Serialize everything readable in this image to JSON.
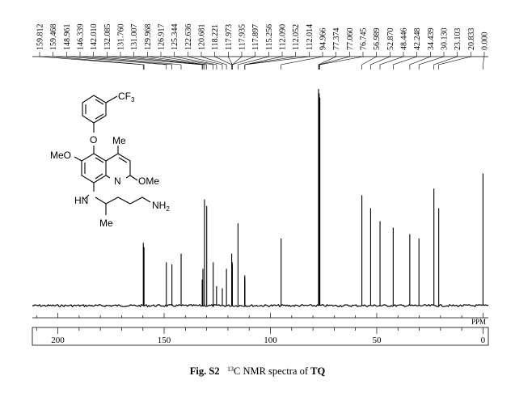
{
  "chart_data": {
    "type": "nmr-spectrum",
    "nucleus": "13C",
    "x_unit_label": "PPM",
    "x_range": [
      212,
      -2.5
    ],
    "x_ticks": [
      200,
      150,
      100,
      50,
      0
    ],
    "peak_labels": [
      "159.812",
      "159.468",
      "148.961",
      "146.339",
      "142.010",
      "132.085",
      "131.760",
      "131.007",
      "129.968",
      "126.917",
      "125.344",
      "122.636",
      "120.681",
      "118.221",
      "117.973",
      "117.935",
      "117.897",
      "115.256",
      "112.090",
      "112.052",
      "112.014",
      "94.966",
      "77.374",
      "77.060",
      "76.745",
      "56.989",
      "52.870",
      "48.446",
      "42.248",
      "34.439",
      "30.130",
      "23.103",
      "20.833",
      "0.000"
    ],
    "peaks": [
      {
        "ppm": 159.812,
        "height": 0.29
      },
      {
        "ppm": 159.468,
        "height": 0.27
      },
      {
        "ppm": 148.961,
        "height": 0.2
      },
      {
        "ppm": 146.339,
        "height": 0.19
      },
      {
        "ppm": 142.01,
        "height": 0.24
      },
      {
        "ppm": 132.085,
        "height": 0.12
      },
      {
        "ppm": 131.76,
        "height": 0.17
      },
      {
        "ppm": 131.007,
        "height": 0.49
      },
      {
        "ppm": 129.968,
        "height": 0.46
      },
      {
        "ppm": 126.917,
        "height": 0.2
      },
      {
        "ppm": 125.344,
        "height": 0.09
      },
      {
        "ppm": 122.636,
        "height": 0.08
      },
      {
        "ppm": 120.681,
        "height": 0.17
      },
      {
        "ppm": 118.221,
        "height": 0.24
      },
      {
        "ppm": 117.973,
        "height": 0.2
      },
      {
        "ppm": 117.935,
        "height": 0.19
      },
      {
        "ppm": 117.897,
        "height": 0.18
      },
      {
        "ppm": 115.256,
        "height": 0.38
      },
      {
        "ppm": 112.09,
        "height": 0.14
      },
      {
        "ppm": 112.052,
        "height": 0.13
      },
      {
        "ppm": 112.014,
        "height": 0.12
      },
      {
        "ppm": 94.966,
        "height": 0.31
      },
      {
        "ppm": 77.374,
        "height": 1.0
      },
      {
        "ppm": 77.06,
        "height": 0.98
      },
      {
        "ppm": 76.745,
        "height": 0.96
      },
      {
        "ppm": 56.989,
        "height": 0.51
      },
      {
        "ppm": 52.87,
        "height": 0.45
      },
      {
        "ppm": 48.446,
        "height": 0.39
      },
      {
        "ppm": 42.248,
        "height": 0.36
      },
      {
        "ppm": 34.439,
        "height": 0.33
      },
      {
        "ppm": 30.13,
        "height": 0.31
      },
      {
        "ppm": 23.103,
        "height": 0.54
      },
      {
        "ppm": 20.833,
        "height": 0.45
      },
      {
        "ppm": 0.0,
        "height": 0.61
      }
    ],
    "structure_labels": {
      "cf3": "CF3",
      "o": "O",
      "me_top": "Me",
      "meo": "MeO",
      "n_ring": "N",
      "ome": "OMe",
      "hn": "HN",
      "nh2": "NH2",
      "me_bottom": "Me"
    }
  },
  "caption": {
    "fig_label": "Fig. S2",
    "isotope_mass": "13",
    "isotope_element": "C",
    "text": " NMR spectra of ",
    "compound": "TQ"
  }
}
